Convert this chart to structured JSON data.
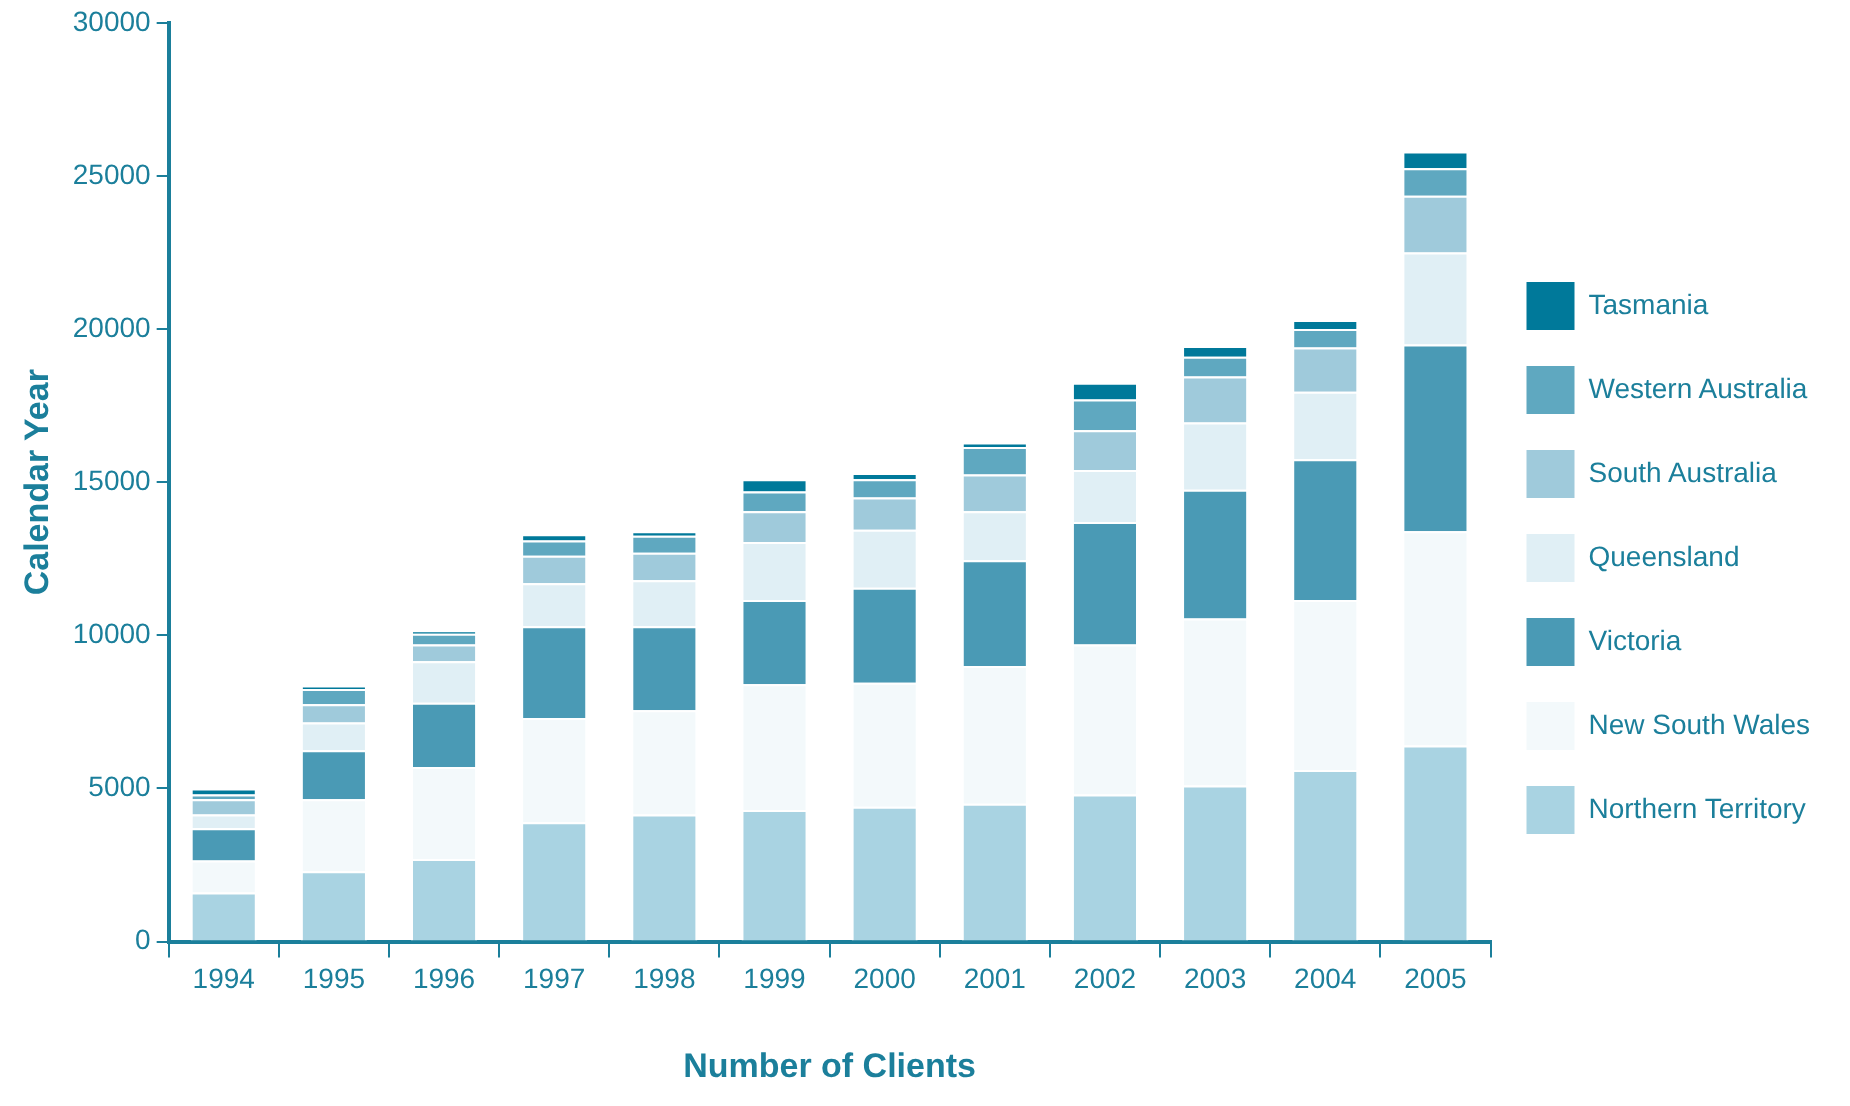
{
  "chart_data": {
    "type": "bar",
    "stacked": true,
    "xlabel": "Number of Clients",
    "ylabel": "Calendar Year",
    "categories": [
      "1994",
      "1995",
      "1996",
      "1997",
      "1998",
      "1999",
      "2000",
      "2001",
      "2002",
      "2003",
      "2004",
      "2005"
    ],
    "series": [
      {
        "name": "Northern Territory",
        "color": "#a9d3e2",
        "values": [
          1600,
          2300,
          2700,
          3900,
          4150,
          4300,
          4400,
          4500,
          4800,
          5100,
          5600,
          6400
        ]
      },
      {
        "name": "New South Wales",
        "color": "#f3f9fb",
        "values": [
          1050,
          2350,
          3000,
          3400,
          3400,
          4100,
          4050,
          4500,
          4900,
          5450,
          5550,
          7000
        ]
      },
      {
        "name": "Victoria",
        "color": "#4a9ab5",
        "values": [
          1050,
          1600,
          2100,
          3000,
          2750,
          2750,
          3100,
          3450,
          4000,
          4200,
          4600,
          6100
        ]
      },
      {
        "name": "Queensland",
        "color": "#e0eff5",
        "values": [
          450,
          900,
          1350,
          1400,
          1500,
          1900,
          1900,
          1600,
          1700,
          2200,
          2200,
          3000
        ]
      },
      {
        "name": "South Australia",
        "color": "#9fcadb",
        "values": [
          500,
          600,
          550,
          900,
          900,
          1000,
          1050,
          1200,
          1300,
          1500,
          1450,
          1850
        ]
      },
      {
        "name": "Western Australia",
        "color": "#5fa8c0",
        "values": [
          150,
          500,
          350,
          500,
          550,
          650,
          600,
          900,
          1000,
          650,
          600,
          900
        ]
      },
      {
        "name": "Tasmania",
        "color": "#00799a",
        "values": [
          200,
          100,
          100,
          200,
          150,
          400,
          200,
          150,
          550,
          350,
          300,
          550
        ]
      }
    ],
    "ylim": [
      0,
      30000
    ],
    "yticks": [
      0,
      5000,
      10000,
      15000,
      20000,
      25000,
      30000
    ],
    "grid": false,
    "legend": "right"
  }
}
